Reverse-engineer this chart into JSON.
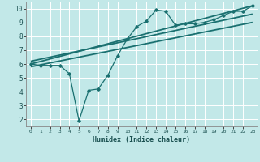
{
  "title": "",
  "xlabel": "Humidex (Indice chaleur)",
  "ylabel": "",
  "bg_color": "#c2e8e8",
  "grid_color": "#ffffff",
  "line_color": "#1a7070",
  "xlim": [
    -0.5,
    23.5
  ],
  "ylim": [
    1.5,
    10.5
  ],
  "yticks": [
    2,
    3,
    4,
    5,
    6,
    7,
    8,
    9,
    10
  ],
  "xticks": [
    0,
    1,
    2,
    3,
    4,
    5,
    6,
    7,
    8,
    9,
    10,
    11,
    12,
    13,
    14,
    15,
    16,
    17,
    18,
    19,
    20,
    21,
    22,
    23
  ],
  "series1_x": [
    0,
    1,
    2,
    3,
    4,
    5,
    6,
    7,
    8,
    9,
    10,
    11,
    12,
    13,
    14,
    15,
    16,
    17,
    18,
    19,
    20,
    21,
    22,
    23
  ],
  "series1_y": [
    6.0,
    5.9,
    5.9,
    5.9,
    5.3,
    1.9,
    4.1,
    4.2,
    5.2,
    6.6,
    7.8,
    8.7,
    9.1,
    9.9,
    9.8,
    8.8,
    8.9,
    8.9,
    9.0,
    9.2,
    9.5,
    9.8,
    9.8,
    10.2
  ],
  "series2_x": [
    0,
    23
  ],
  "series2_y": [
    6.0,
    10.2
  ],
  "series3_x": [
    0,
    23
  ],
  "series3_y": [
    5.8,
    9.0
  ],
  "series4_x": [
    0,
    23
  ],
  "series4_y": [
    6.2,
    9.6
  ]
}
